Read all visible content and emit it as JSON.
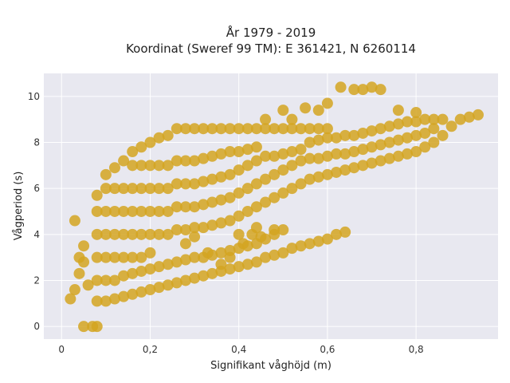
{
  "chart_data": {
    "type": "scatter",
    "title_lines": [
      "År 1979 - 2019",
      "Koordinat (Sweref 99 TM): E 361421, N 6260114"
    ],
    "xlabel": "Signifikant våghöjd (m)",
    "ylabel": "Vågperiod (s)",
    "xlim": [
      -0.04,
      0.985
    ],
    "ylim": [
      -0.55,
      11.0
    ],
    "x_ticks": [
      {
        "value": 0,
        "label": "0"
      },
      {
        "value": 0.2,
        "label": "0,2"
      },
      {
        "value": 0.4,
        "label": "0,4"
      },
      {
        "value": 0.6,
        "label": "0,6"
      },
      {
        "value": 0.8,
        "label": "0,8"
      }
    ],
    "y_ticks": [
      {
        "value": 0,
        "label": "0"
      },
      {
        "value": 2,
        "label": "2"
      },
      {
        "value": 4,
        "label": "4"
      },
      {
        "value": 6,
        "label": "6"
      },
      {
        "value": 8,
        "label": "8"
      },
      {
        "value": 10,
        "label": "10"
      }
    ],
    "grid": true,
    "legend": "none",
    "colors": {
      "marker": "#d4a421",
      "plot_bg": "#e8e8f0",
      "grid": "#ffffff"
    },
    "series": [
      {
        "points": [
          [
            0.05,
            0.0
          ],
          [
            0.07,
            0.0
          ],
          [
            0.08,
            0.0
          ],
          [
            0.02,
            1.2
          ],
          [
            0.03,
            1.6
          ],
          [
            0.04,
            2.3
          ],
          [
            0.05,
            3.5
          ],
          [
            0.03,
            4.6
          ],
          [
            0.04,
            3.0
          ],
          [
            0.06,
            1.8
          ],
          [
            0.05,
            2.8
          ],
          [
            0.08,
            1.1
          ],
          [
            0.08,
            2.0
          ],
          [
            0.08,
            3.0
          ],
          [
            0.08,
            4.0
          ],
          [
            0.08,
            5.0
          ],
          [
            0.08,
            5.7
          ],
          [
            0.1,
            1.1
          ],
          [
            0.1,
            2.0
          ],
          [
            0.1,
            3.0
          ],
          [
            0.1,
            4.0
          ],
          [
            0.1,
            5.0
          ],
          [
            0.1,
            6.0
          ],
          [
            0.1,
            6.6
          ],
          [
            0.12,
            1.2
          ],
          [
            0.12,
            2.0
          ],
          [
            0.12,
            3.0
          ],
          [
            0.12,
            4.0
          ],
          [
            0.12,
            5.0
          ],
          [
            0.12,
            6.0
          ],
          [
            0.12,
            6.9
          ],
          [
            0.14,
            1.3
          ],
          [
            0.14,
            2.2
          ],
          [
            0.14,
            3.0
          ],
          [
            0.14,
            4.0
          ],
          [
            0.14,
            5.0
          ],
          [
            0.14,
            6.0
          ],
          [
            0.14,
            7.2
          ],
          [
            0.16,
            1.4
          ],
          [
            0.16,
            2.3
          ],
          [
            0.16,
            3.0
          ],
          [
            0.16,
            4.0
          ],
          [
            0.16,
            5.0
          ],
          [
            0.16,
            6.0
          ],
          [
            0.16,
            7.0
          ],
          [
            0.16,
            7.6
          ],
          [
            0.18,
            1.5
          ],
          [
            0.18,
            2.4
          ],
          [
            0.18,
            3.0
          ],
          [
            0.18,
            4.0
          ],
          [
            0.18,
            5.0
          ],
          [
            0.18,
            6.0
          ],
          [
            0.18,
            7.0
          ],
          [
            0.18,
            7.8
          ],
          [
            0.2,
            1.6
          ],
          [
            0.2,
            2.5
          ],
          [
            0.2,
            3.2
          ],
          [
            0.2,
            4.0
          ],
          [
            0.2,
            5.0
          ],
          [
            0.2,
            6.0
          ],
          [
            0.2,
            7.0
          ],
          [
            0.2,
            8.0
          ],
          [
            0.22,
            1.7
          ],
          [
            0.22,
            2.6
          ],
          [
            0.22,
            4.0
          ],
          [
            0.22,
            5.0
          ],
          [
            0.22,
            6.0
          ],
          [
            0.22,
            7.0
          ],
          [
            0.22,
            8.2
          ],
          [
            0.24,
            1.8
          ],
          [
            0.24,
            2.7
          ],
          [
            0.24,
            4.0
          ],
          [
            0.24,
            5.0
          ],
          [
            0.24,
            6.0
          ],
          [
            0.24,
            7.0
          ],
          [
            0.24,
            8.3
          ],
          [
            0.26,
            1.9
          ],
          [
            0.26,
            2.8
          ],
          [
            0.26,
            4.2
          ],
          [
            0.26,
            5.2
          ],
          [
            0.26,
            6.2
          ],
          [
            0.26,
            7.2
          ],
          [
            0.26,
            8.6
          ],
          [
            0.28,
            2.0
          ],
          [
            0.28,
            2.9
          ],
          [
            0.28,
            4.2
          ],
          [
            0.28,
            5.2
          ],
          [
            0.28,
            6.2
          ],
          [
            0.28,
            7.2
          ],
          [
            0.28,
            8.6
          ],
          [
            0.3,
            2.1
          ],
          [
            0.3,
            3.0
          ],
          [
            0.3,
            4.3
          ],
          [
            0.3,
            5.2
          ],
          [
            0.3,
            6.2
          ],
          [
            0.3,
            7.2
          ],
          [
            0.3,
            8.6
          ],
          [
            0.32,
            2.2
          ],
          [
            0.32,
            3.0
          ],
          [
            0.32,
            4.3
          ],
          [
            0.32,
            5.3
          ],
          [
            0.32,
            6.3
          ],
          [
            0.32,
            7.3
          ],
          [
            0.32,
            8.6
          ],
          [
            0.34,
            2.3
          ],
          [
            0.34,
            3.1
          ],
          [
            0.34,
            4.4
          ],
          [
            0.34,
            5.4
          ],
          [
            0.34,
            6.4
          ],
          [
            0.34,
            7.4
          ],
          [
            0.34,
            8.6
          ],
          [
            0.36,
            2.4
          ],
          [
            0.36,
            3.2
          ],
          [
            0.36,
            4.5
          ],
          [
            0.36,
            5.5
          ],
          [
            0.36,
            6.5
          ],
          [
            0.36,
            7.5
          ],
          [
            0.36,
            8.6
          ],
          [
            0.38,
            2.5
          ],
          [
            0.38,
            3.3
          ],
          [
            0.38,
            4.6
          ],
          [
            0.38,
            5.6
          ],
          [
            0.38,
            6.6
          ],
          [
            0.38,
            7.6
          ],
          [
            0.38,
            8.6
          ],
          [
            0.4,
            2.6
          ],
          [
            0.4,
            3.4
          ],
          [
            0.4,
            4.8
          ],
          [
            0.4,
            5.8
          ],
          [
            0.4,
            6.8
          ],
          [
            0.4,
            7.6
          ],
          [
            0.4,
            8.6
          ],
          [
            0.42,
            2.7
          ],
          [
            0.42,
            3.5
          ],
          [
            0.42,
            5.0
          ],
          [
            0.42,
            6.0
          ],
          [
            0.42,
            7.0
          ],
          [
            0.42,
            7.7
          ],
          [
            0.42,
            8.6
          ],
          [
            0.44,
            2.8
          ],
          [
            0.44,
            3.6
          ],
          [
            0.44,
            5.2
          ],
          [
            0.44,
            6.2
          ],
          [
            0.44,
            7.2
          ],
          [
            0.44,
            7.8
          ],
          [
            0.44,
            8.6
          ],
          [
            0.46,
            3.0
          ],
          [
            0.46,
            3.8
          ],
          [
            0.46,
            5.4
          ],
          [
            0.46,
            6.4
          ],
          [
            0.46,
            7.4
          ],
          [
            0.46,
            8.6
          ],
          [
            0.48,
            3.1
          ],
          [
            0.48,
            4.0
          ],
          [
            0.48,
            5.6
          ],
          [
            0.48,
            6.6
          ],
          [
            0.48,
            7.4
          ],
          [
            0.48,
            8.6
          ],
          [
            0.5,
            3.2
          ],
          [
            0.5,
            4.2
          ],
          [
            0.5,
            5.8
          ],
          [
            0.5,
            6.8
          ],
          [
            0.5,
            7.5
          ],
          [
            0.5,
            8.6
          ],
          [
            0.52,
            3.4
          ],
          [
            0.52,
            6.0
          ],
          [
            0.52,
            7.0
          ],
          [
            0.52,
            7.6
          ],
          [
            0.52,
            8.6
          ],
          [
            0.54,
            3.5
          ],
          [
            0.54,
            6.2
          ],
          [
            0.54,
            7.2
          ],
          [
            0.54,
            7.7
          ],
          [
            0.54,
            8.6
          ],
          [
            0.56,
            3.6
          ],
          [
            0.56,
            6.4
          ],
          [
            0.56,
            7.3
          ],
          [
            0.56,
            8.0
          ],
          [
            0.56,
            8.6
          ],
          [
            0.58,
            3.7
          ],
          [
            0.58,
            6.5
          ],
          [
            0.58,
            7.3
          ],
          [
            0.58,
            8.1
          ],
          [
            0.58,
            8.6
          ],
          [
            0.6,
            3.8
          ],
          [
            0.6,
            6.6
          ],
          [
            0.6,
            7.4
          ],
          [
            0.6,
            8.2
          ],
          [
            0.6,
            8.6
          ],
          [
            0.62,
            4.0
          ],
          [
            0.62,
            6.7
          ],
          [
            0.62,
            7.5
          ],
          [
            0.62,
            8.2
          ],
          [
            0.64,
            4.1
          ],
          [
            0.64,
            6.8
          ],
          [
            0.64,
            7.5
          ],
          [
            0.64,
            8.3
          ],
          [
            0.66,
            6.9
          ],
          [
            0.66,
            7.6
          ],
          [
            0.66,
            8.3
          ],
          [
            0.68,
            7.0
          ],
          [
            0.68,
            7.7
          ],
          [
            0.68,
            8.4
          ],
          [
            0.7,
            7.1
          ],
          [
            0.7,
            7.8
          ],
          [
            0.7,
            8.5
          ],
          [
            0.72,
            7.2
          ],
          [
            0.72,
            7.9
          ],
          [
            0.72,
            8.6
          ],
          [
            0.74,
            7.3
          ],
          [
            0.74,
            8.0
          ],
          [
            0.74,
            8.7
          ],
          [
            0.76,
            7.4
          ],
          [
            0.76,
            8.1
          ],
          [
            0.76,
            8.8
          ],
          [
            0.78,
            7.5
          ],
          [
            0.78,
            8.2
          ],
          [
            0.78,
            8.9
          ],
          [
            0.8,
            7.6
          ],
          [
            0.8,
            8.3
          ],
          [
            0.8,
            8.9
          ],
          [
            0.82,
            7.8
          ],
          [
            0.82,
            8.4
          ],
          [
            0.82,
            9.0
          ],
          [
            0.84,
            8.0
          ],
          [
            0.84,
            8.6
          ],
          [
            0.84,
            9.0
          ],
          [
            0.86,
            8.3
          ],
          [
            0.86,
            9.0
          ],
          [
            0.88,
            8.7
          ],
          [
            0.9,
            9.0
          ],
          [
            0.92,
            9.1
          ],
          [
            0.94,
            9.2
          ],
          [
            0.63,
            10.4
          ],
          [
            0.66,
            10.3
          ],
          [
            0.68,
            10.3
          ],
          [
            0.7,
            10.4
          ],
          [
            0.72,
            10.3
          ],
          [
            0.76,
            9.4
          ],
          [
            0.8,
            9.3
          ],
          [
            0.55,
            9.5
          ],
          [
            0.58,
            9.4
          ],
          [
            0.6,
            9.7
          ],
          [
            0.5,
            9.4
          ],
          [
            0.46,
            9.0
          ],
          [
            0.52,
            9.0
          ],
          [
            0.4,
            4.0
          ],
          [
            0.43,
            4.0
          ],
          [
            0.45,
            3.9
          ],
          [
            0.48,
            4.2
          ],
          [
            0.44,
            4.3
          ],
          [
            0.41,
            3.6
          ],
          [
            0.36,
            2.7
          ],
          [
            0.38,
            3.0
          ],
          [
            0.33,
            3.2
          ],
          [
            0.28,
            3.6
          ],
          [
            0.3,
            3.9
          ]
        ]
      }
    ]
  }
}
